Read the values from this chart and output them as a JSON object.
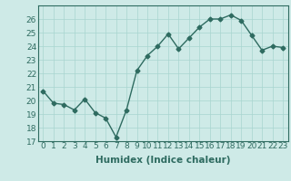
{
  "x": [
    0,
    1,
    2,
    3,
    4,
    5,
    6,
    7,
    8,
    9,
    10,
    11,
    12,
    13,
    14,
    15,
    16,
    17,
    18,
    19,
    20,
    21,
    22,
    23
  ],
  "y": [
    20.7,
    19.8,
    19.7,
    19.3,
    20.1,
    19.1,
    18.7,
    17.3,
    19.3,
    22.2,
    23.3,
    24.0,
    24.9,
    23.8,
    24.6,
    25.4,
    26.0,
    26.0,
    26.3,
    25.9,
    24.8,
    23.7,
    24.0,
    23.9
  ],
  "xlabel": "Humidex (Indice chaleur)",
  "ylim": [
    17,
    27
  ],
  "xlim": [
    -0.5,
    23.5
  ],
  "bg_color": "#ceeae7",
  "line_color": "#2e6b60",
  "grid_color": "#a8d5cf",
  "yticks": [
    17,
    18,
    19,
    20,
    21,
    22,
    23,
    24,
    25,
    26
  ],
  "xticks": [
    0,
    1,
    2,
    3,
    4,
    5,
    6,
    7,
    8,
    9,
    10,
    11,
    12,
    13,
    14,
    15,
    16,
    17,
    18,
    19,
    20,
    21,
    22,
    23
  ],
  "xlabel_fontsize": 7.5,
  "tick_fontsize": 6.5,
  "line_width": 1.0,
  "marker_size": 2.5
}
